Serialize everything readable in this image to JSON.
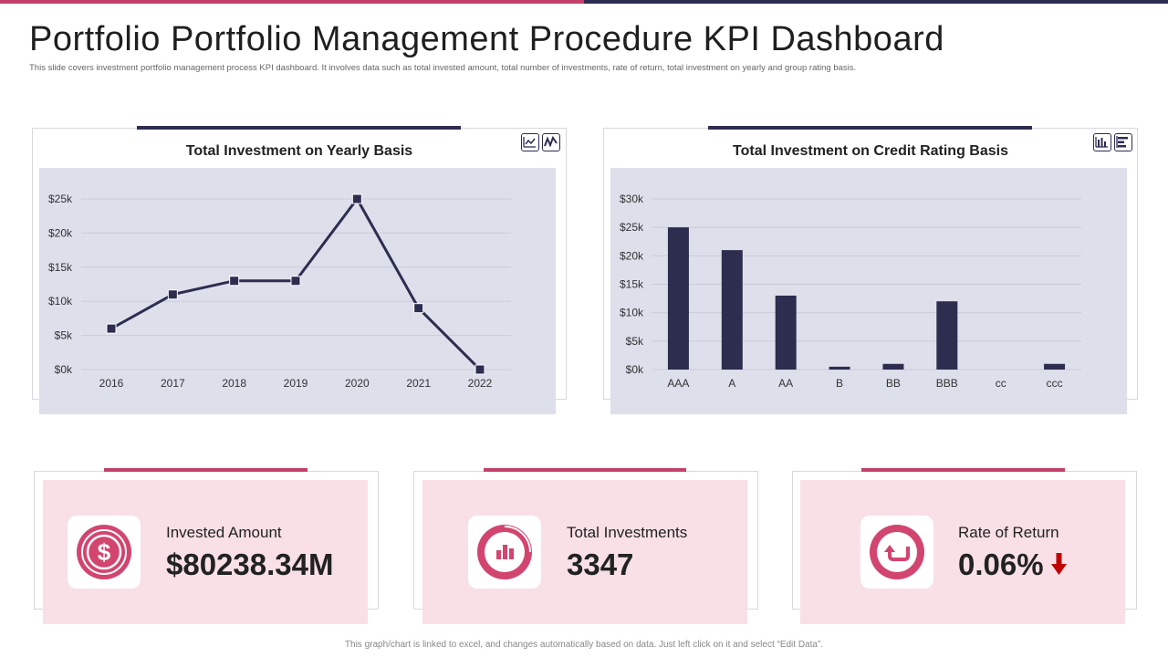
{
  "header": {
    "title": "Portfolio Portfolio Management Procedure KPI Dashboard",
    "subtitle": "This slide covers investment portfolio management process KPI dashboard. It involves data such as total invested amount, total number of investments, rate of return, total investment on yearly and group rating basis."
  },
  "colors": {
    "navy": "#2d2d50",
    "pink": "#c2406a",
    "plot_bg": "#dddfeb",
    "kpi_bg": "#f8e0e6",
    "arrow": "#c00000"
  },
  "icons": {
    "line_chart_toggle": "line-chart-icon",
    "sparkline_toggle": "sparkline-icon",
    "bar_chart_toggle": "bar-chart-icon",
    "horizontal_bar_toggle": "horizontal-bar-icon"
  },
  "chart_data": [
    {
      "type": "line",
      "title": "Total Investment  on Yearly Basis",
      "categories": [
        "2016",
        "2017",
        "2018",
        "2019",
        "2020",
        "2021",
        "2022"
      ],
      "values": [
        6,
        11,
        13,
        13,
        25,
        9,
        0
      ],
      "yticks": [
        "$0k",
        "$5k",
        "$10k",
        "$15k",
        "$20k",
        "$25k"
      ],
      "ylim": [
        0,
        25
      ],
      "unit": "$k",
      "grid": true
    },
    {
      "type": "bar",
      "title": "Total Investment  on Credit Rating Basis",
      "categories": [
        "AAA",
        "A",
        "AA",
        "B",
        "BB",
        "BBB",
        "cc",
        "ccc"
      ],
      "values": [
        25,
        21,
        13,
        0.5,
        1,
        12,
        0,
        1
      ],
      "yticks": [
        "$0k",
        "$5k",
        "$10k",
        "$15k",
        "$20k",
        "$25k",
        "$30k"
      ],
      "ylim": [
        0,
        30
      ],
      "unit": "$k",
      "grid": true
    }
  ],
  "kpis": [
    {
      "label": "Invested Amount",
      "value": "$80238.34M",
      "icon": "dollar-icon"
    },
    {
      "label": "Total Investments",
      "value": "3347",
      "icon": "bar-chart-icon"
    },
    {
      "label": "Rate of Return",
      "value": "0.06%",
      "icon": "return-arrow-icon",
      "trend": "down"
    }
  ],
  "footer": "This graph/chart is linked to excel, and changes automatically based on data. Just left click on it and select “Edit Data”."
}
